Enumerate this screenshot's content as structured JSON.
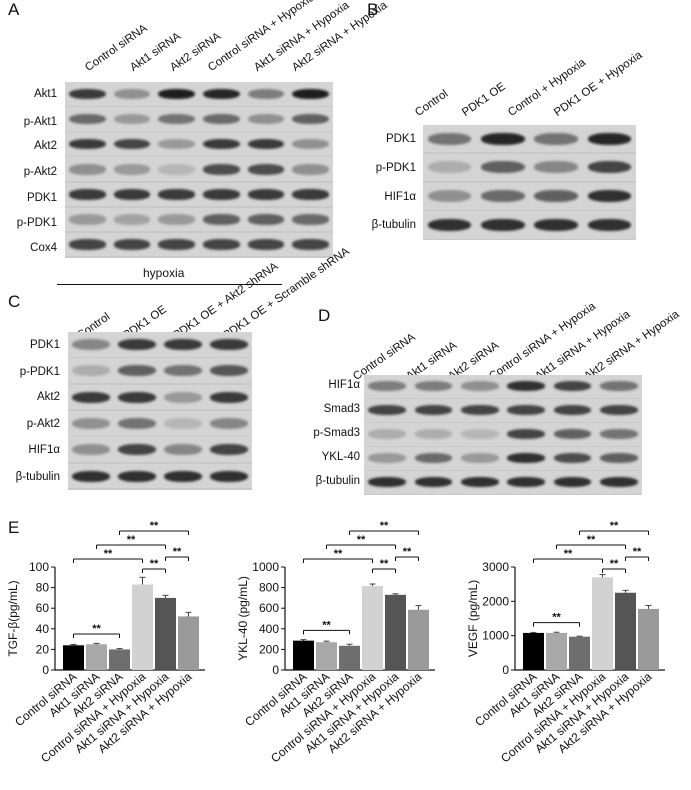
{
  "panels": {
    "A": {
      "letter": "A",
      "lanes": [
        "Control siRNA",
        "Akt1 siRNA",
        "Akt2 siRNA",
        "Control siRNA + Hypoxia",
        "Akt1 siRNA + Hypoxia",
        "Akt2 siRNA + Hypoxia"
      ],
      "rows": [
        {
          "label": "Akt1",
          "intensities": [
            0.8,
            0.35,
            0.95,
            0.9,
            0.45,
            0.95
          ]
        },
        {
          "label": "p-Akt1",
          "intensities": [
            0.55,
            0.3,
            0.5,
            0.55,
            0.35,
            0.6
          ]
        },
        {
          "label": "Akt2",
          "intensities": [
            0.8,
            0.75,
            0.3,
            0.8,
            0.8,
            0.35
          ]
        },
        {
          "label": "p-Akt2",
          "intensities": [
            0.35,
            0.3,
            0.15,
            0.7,
            0.7,
            0.35
          ]
        },
        {
          "label": "PDK1",
          "intensities": [
            0.8,
            0.8,
            0.8,
            0.8,
            0.8,
            0.8
          ]
        },
        {
          "label": "p-PDK1",
          "intensities": [
            0.3,
            0.25,
            0.3,
            0.6,
            0.6,
            0.55
          ]
        },
        {
          "label": "Cox4",
          "intensities": [
            0.75,
            0.75,
            0.75,
            0.75,
            0.75,
            0.75
          ]
        }
      ],
      "footer": "hypoxia"
    },
    "B": {
      "letter": "B",
      "lanes": [
        "Control",
        "PDK1 OE",
        "Control + Hypoxia",
        "PDK1 OE + Hypoxia"
      ],
      "rows": [
        {
          "label": "PDK1",
          "intensities": [
            0.5,
            0.9,
            0.5,
            0.9
          ]
        },
        {
          "label": "p-PDK1",
          "intensities": [
            0.2,
            0.6,
            0.4,
            0.75
          ]
        },
        {
          "label": "HIF1α",
          "intensities": [
            0.35,
            0.55,
            0.6,
            0.85
          ]
        },
        {
          "label": "β-tubulin",
          "intensities": [
            0.85,
            0.85,
            0.85,
            0.85
          ]
        }
      ]
    },
    "C": {
      "letter": "C",
      "lanes": [
        "Control",
        "PDK1 OE",
        "PDK1 OE + Akt2 shRNA",
        "PDK1 OE + Scramble shRNA"
      ],
      "rows": [
        {
          "label": "PDK1",
          "intensities": [
            0.4,
            0.8,
            0.8,
            0.8
          ]
        },
        {
          "label": "p-PDK1",
          "intensities": [
            0.2,
            0.6,
            0.5,
            0.65
          ]
        },
        {
          "label": "Akt2",
          "intensities": [
            0.8,
            0.8,
            0.3,
            0.8
          ]
        },
        {
          "label": "p-Akt2",
          "intensities": [
            0.35,
            0.5,
            0.15,
            0.4
          ]
        },
        {
          "label": "HIF1α",
          "intensities": [
            0.35,
            0.75,
            0.4,
            0.75
          ]
        },
        {
          "label": "β-tubulin",
          "intensities": [
            0.85,
            0.85,
            0.85,
            0.85
          ]
        }
      ]
    },
    "D": {
      "letter": "D",
      "lanes": [
        "Control siRNA",
        "Akt1 siRNA",
        "Akt2 siRNA",
        "Control siRNA + Hypoxia",
        "Akt1 siRNA + Hypoxia",
        "Akt2 siRNA + Hypoxia"
      ],
      "rows": [
        {
          "label": "HIF1α",
          "intensities": [
            0.45,
            0.45,
            0.35,
            0.85,
            0.75,
            0.5
          ]
        },
        {
          "label": "Smad3",
          "intensities": [
            0.75,
            0.75,
            0.75,
            0.75,
            0.75,
            0.75
          ]
        },
        {
          "label": "p-Smad3",
          "intensities": [
            0.2,
            0.2,
            0.15,
            0.75,
            0.6,
            0.5
          ]
        },
        {
          "label": "YKL-40",
          "intensities": [
            0.3,
            0.55,
            0.3,
            0.85,
            0.7,
            0.6
          ]
        },
        {
          "label": "β-tubulin",
          "intensities": [
            0.85,
            0.85,
            0.85,
            0.85,
            0.85,
            0.85
          ]
        }
      ]
    },
    "E": {
      "letter": "E"
    }
  },
  "colors": {
    "bars": [
      "#000000",
      "#a8a8a8",
      "#6e6e6e",
      "#d2d2d2",
      "#555555",
      "#9a9a9a"
    ],
    "axis": "#111111"
  },
  "chart_data": [
    {
      "type": "bar",
      "categories": [
        "Control siRNA",
        "Akt1 siRNA",
        "Akt2 siRNA",
        "Control siRNA + Hypoxia",
        "Akt1 siRNA + Hypoxia",
        "Akt2 siRNA + Hypoxia"
      ],
      "values": [
        24,
        25,
        20,
        83,
        70,
        52
      ],
      "errors": [
        0.8,
        0.8,
        0.8,
        7,
        2.5,
        4
      ],
      "ylabel": "TGF-β(pg/mL)",
      "ylim": [
        0,
        100
      ],
      "yticks": [
        "0",
        "20",
        "40",
        "60",
        "80",
        "100"
      ],
      "significance": [
        {
          "from": 0,
          "to": 2,
          "label": "**"
        },
        {
          "from": 0,
          "to": 3,
          "label": "**"
        },
        {
          "from": 3,
          "to": 4,
          "label": "**"
        },
        {
          "from": 1,
          "to": 4,
          "label": "**"
        },
        {
          "from": 4,
          "to": 5,
          "label": "**"
        },
        {
          "from": 2,
          "to": 5,
          "label": "**"
        }
      ]
    },
    {
      "type": "bar",
      "categories": [
        "Control siRNA",
        "Akt1 siRNA",
        "Akt2 siRNA",
        "Control siRNA + Hypoxia",
        "Akt1 siRNA + Hypoxia",
        "Akt2 siRNA + Hypoxia"
      ],
      "values": [
        285,
        270,
        235,
        815,
        730,
        585
      ],
      "errors": [
        10,
        10,
        15,
        20,
        10,
        40
      ],
      "ylabel": "YKL-40 (pg/mL)",
      "ylim": [
        0,
        1000
      ],
      "yticks": [
        "0",
        "200",
        "400",
        "600",
        "800",
        "1000"
      ],
      "significance": [
        {
          "from": 0,
          "to": 2,
          "label": "**"
        },
        {
          "from": 0,
          "to": 3,
          "label": "**"
        },
        {
          "from": 3,
          "to": 4,
          "label": "**"
        },
        {
          "from": 1,
          "to": 4,
          "label": "**"
        },
        {
          "from": 4,
          "to": 5,
          "label": "**"
        },
        {
          "from": 2,
          "to": 5,
          "label": "**"
        }
      ]
    },
    {
      "type": "bar",
      "categories": [
        "Control siRNA",
        "Akt1 siRNA",
        "Akt2 siRNA",
        "Control siRNA + Hypoxia",
        "Akt1 siRNA + Hypoxia",
        "Akt2 siRNA + Hypoxia"
      ],
      "values": [
        1080,
        1080,
        970,
        2700,
        2250,
        1780
      ],
      "errors": [
        15,
        20,
        15,
        80,
        70,
        100
      ],
      "ylabel": "VEGF (pg/mL)",
      "ylim": [
        0,
        3000
      ],
      "yticks": [
        "0",
        "1000",
        "2000",
        "3000"
      ],
      "significance": [
        {
          "from": 0,
          "to": 2,
          "label": "**"
        },
        {
          "from": 0,
          "to": 3,
          "label": "**"
        },
        {
          "from": 3,
          "to": 4,
          "label": "**"
        },
        {
          "from": 1,
          "to": 4,
          "label": "**"
        },
        {
          "from": 4,
          "to": 5,
          "label": "**"
        },
        {
          "from": 2,
          "to": 5,
          "label": "**"
        }
      ]
    }
  ]
}
